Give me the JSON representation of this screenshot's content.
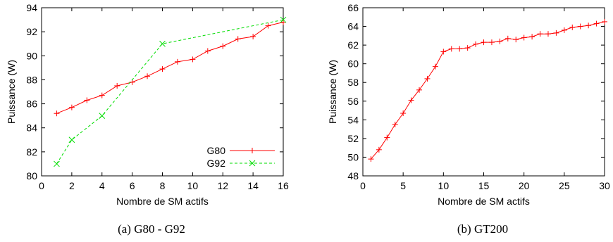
{
  "chart_data": [
    {
      "type": "line",
      "xlabel": "Nombre de SM actifs",
      "ylabel": "Puissance (W)",
      "xlim": [
        0,
        16
      ],
      "ylim": [
        80,
        94
      ],
      "xticks": [
        "0",
        "2",
        "4",
        "6",
        "8",
        "10",
        "12",
        "14",
        "16"
      ],
      "yticks": [
        "80",
        "82",
        "84",
        "86",
        "88",
        "90",
        "92",
        "94"
      ],
      "legend_position": "bottom-right",
      "grid": false,
      "series": [
        {
          "name": "G80",
          "color": "#ff0000",
          "marker": "plus",
          "dash": "solid",
          "x": [
            1,
            2,
            3,
            4,
            5,
            6,
            7,
            8,
            9,
            10,
            11,
            12,
            13,
            14,
            15,
            16
          ],
          "y": [
            85.2,
            85.7,
            86.3,
            86.7,
            87.5,
            87.8,
            88.3,
            88.9,
            89.5,
            89.7,
            90.4,
            90.8,
            91.4,
            91.6,
            92.5,
            92.8
          ]
        },
        {
          "name": "G92",
          "color": "#00dd00",
          "marker": "cross",
          "dash": "dashed",
          "x": [
            1,
            2,
            4,
            8,
            16
          ],
          "y": [
            81,
            83,
            85,
            91,
            93
          ]
        }
      ]
    },
    {
      "type": "line",
      "xlabel": "Nombre de SM actifs",
      "ylabel": "Puissance (W)",
      "xlim": [
        0,
        30
      ],
      "ylim": [
        48,
        66
      ],
      "xticks": [
        "0",
        "5",
        "10",
        "15",
        "20",
        "25",
        "30"
      ],
      "yticks": [
        "48",
        "50",
        "52",
        "54",
        "56",
        "58",
        "60",
        "62",
        "64",
        "66"
      ],
      "grid": false,
      "series": [
        {
          "color": "#ff0000",
          "marker": "plus",
          "dash": "solid",
          "x": [
            1,
            2,
            3,
            4,
            5,
            6,
            7,
            8,
            9,
            10,
            11,
            12,
            13,
            14,
            15,
            16,
            17,
            18,
            19,
            20,
            21,
            22,
            23,
            24,
            25,
            26,
            27,
            28,
            29,
            30
          ],
          "y": [
            49.8,
            50.8,
            52.1,
            53.5,
            54.7,
            56.1,
            57.2,
            58.4,
            59.7,
            61.3,
            61.6,
            61.6,
            61.7,
            62.1,
            62.3,
            62.3,
            62.4,
            62.7,
            62.6,
            62.8,
            62.9,
            63.2,
            63.2,
            63.3,
            63.6,
            63.9,
            64.0,
            64.1,
            64.3,
            64.5
          ]
        }
      ]
    }
  ],
  "captions": {
    "a": "(a)  G80 - G92",
    "b": "(b)  GT200"
  }
}
